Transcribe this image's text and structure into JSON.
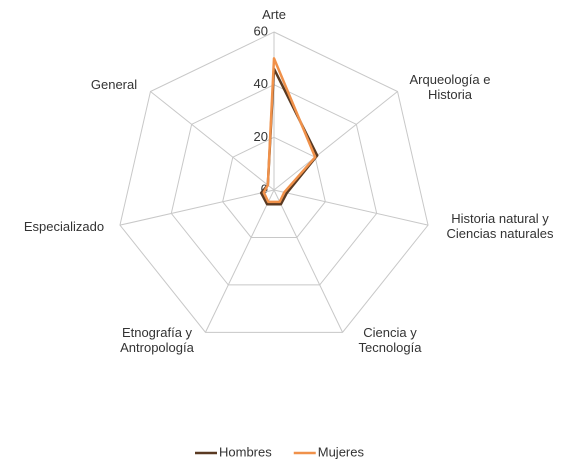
{
  "chart_data": {
    "type": "radar",
    "categories": [
      "Arte",
      "Arqueología e Historia",
      "Historia natural y Ciencias naturales",
      "Ciencia y Tecnología",
      "Etnografía y Antropología",
      "Especializado",
      "General"
    ],
    "series": [
      {
        "name": "Hombres",
        "color": "#5a3a22",
        "values": [
          46,
          21,
          5,
          6,
          6,
          5,
          3
        ]
      },
      {
        "name": "Mujeres",
        "color": "#f0914a",
        "values": [
          50,
          20,
          4,
          5,
          5,
          4,
          3
        ]
      }
    ],
    "ylim": [
      0,
      60
    ],
    "yticks": [
      0,
      20,
      40,
      60
    ],
    "legend": "bottom"
  }
}
